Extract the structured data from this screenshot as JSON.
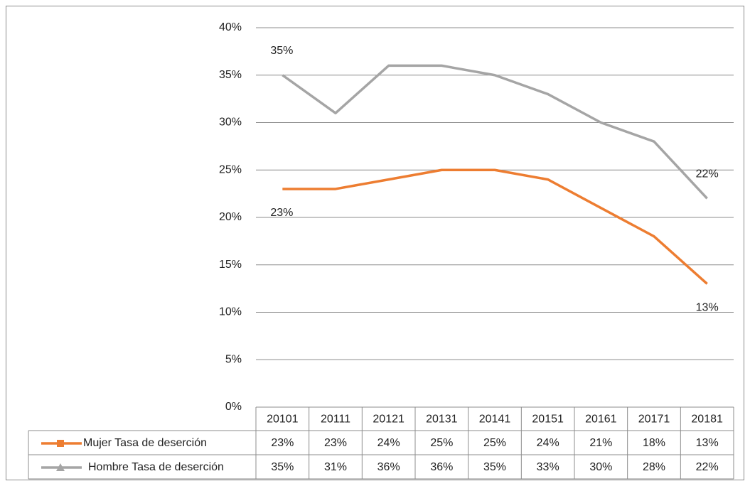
{
  "chart_data": {
    "type": "line",
    "categories": [
      "20101",
      "20111",
      "20121",
      "20131",
      "20141",
      "20151",
      "20161",
      "20171",
      "20181"
    ],
    "series": [
      {
        "name": "Mujer Tasa de deserción",
        "color": "#ed7d31",
        "values": [
          23,
          23,
          24,
          25,
          25,
          24,
          21,
          18,
          13
        ],
        "value_labels": [
          "23%",
          "23%",
          "24%",
          "25%",
          "25%",
          "24%",
          "21%",
          "18%",
          "13%"
        ]
      },
      {
        "name": "Hombre Tasa de deserción",
        "color": "#a5a5a5",
        "values": [
          35,
          31,
          36,
          36,
          35,
          33,
          30,
          28,
          22
        ],
        "value_labels": [
          "35%",
          "31%",
          "36%",
          "36%",
          "35%",
          "33%",
          "30%",
          "28%",
          "22%"
        ]
      }
    ],
    "ylim": [
      0,
      40
    ],
    "yticks": [
      {
        "value": 0,
        "label": "0%"
      },
      {
        "value": 5,
        "label": "5%"
      },
      {
        "value": 10,
        "label": "10%"
      },
      {
        "value": 15,
        "label": "15%"
      },
      {
        "value": 20,
        "label": "20%"
      },
      {
        "value": 25,
        "label": "25%"
      },
      {
        "value": 30,
        "label": "30%"
      },
      {
        "value": 35,
        "label": "35%"
      },
      {
        "value": 40,
        "label": "40%"
      }
    ],
    "grid": true
  }
}
